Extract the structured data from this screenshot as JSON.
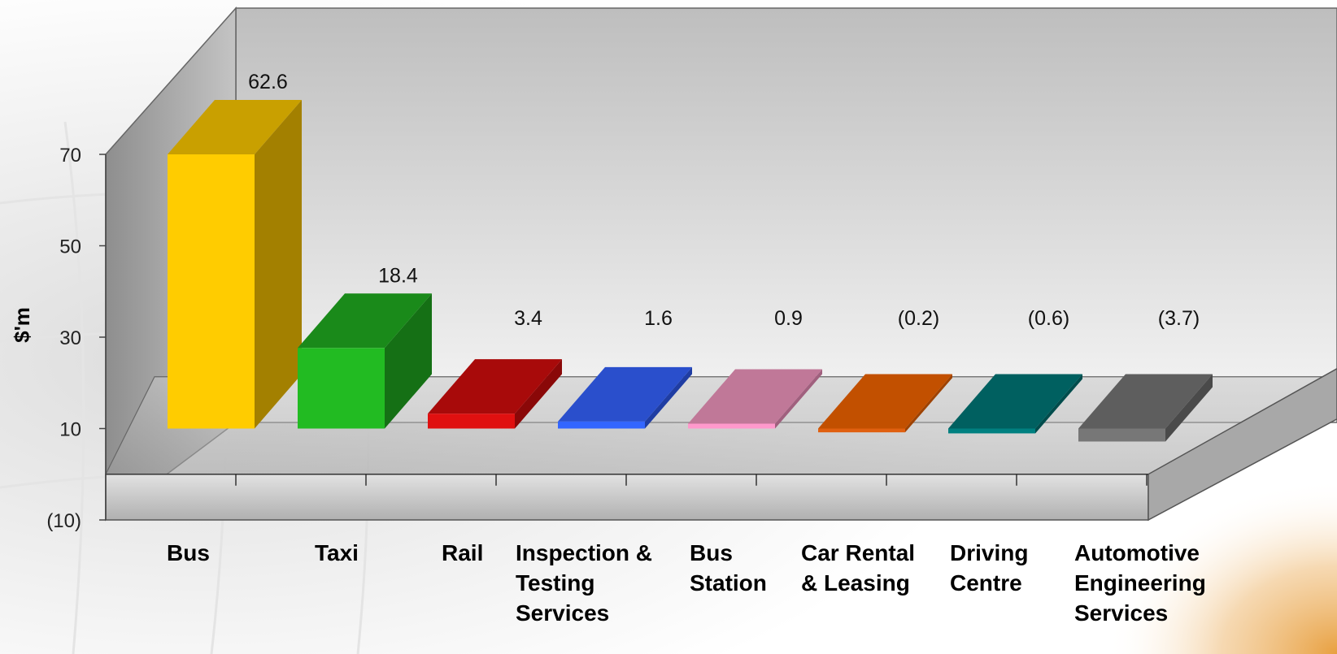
{
  "chart_data": {
    "type": "bar",
    "title": "",
    "xlabel": "",
    "ylabel": "$'m",
    "ylim": [
      -10,
      70
    ],
    "yticks": [
      -10,
      10,
      30,
      50,
      70
    ],
    "ytick_labels": [
      "(10)",
      "10",
      "30",
      "50",
      "70"
    ],
    "grid": false,
    "three_d": true,
    "categories": [
      "Bus",
      "Taxi",
      "Rail",
      "Inspection & Testing Services",
      "Bus Station",
      "Car Rental & Leasing",
      "Driving Centre",
      "Automotive Engineering Services"
    ],
    "category_lines": [
      [
        "Bus"
      ],
      [
        "Taxi"
      ],
      [
        "Rail"
      ],
      [
        "Inspection &",
        "Testing",
        "Services"
      ],
      [
        "Bus",
        "Station"
      ],
      [
        "Car Rental",
        "& Leasing"
      ],
      [
        "Driving",
        "Centre"
      ],
      [
        "Automotive",
        "Engineering",
        "Services"
      ]
    ],
    "values": [
      62.6,
      18.4,
      3.4,
      1.6,
      0.9,
      -0.2,
      -0.6,
      -3.7
    ],
    "value_labels": [
      "62.6",
      "18.4",
      "3.4",
      "1.6",
      "0.9",
      "(0.2)",
      "(0.6)",
      "(3.7)"
    ],
    "colors": [
      "#FFCC00",
      "#22BB22",
      "#E01010",
      "#3366FF",
      "#FF99CC",
      "#E06010",
      "#008080",
      "#777777"
    ],
    "top_colors": [
      "#C9A000",
      "#1A8A1A",
      "#A80A0A",
      "#2A4FCC",
      "#C07898",
      "#C25000",
      "#006060",
      "#5E5E5E"
    ],
    "side_colors": [
      "#A38000",
      "#157015",
      "#8A0808",
      "#1F3DA3",
      "#A0607E",
      "#9E4200",
      "#004C4C",
      "#4A4A4A"
    ]
  }
}
